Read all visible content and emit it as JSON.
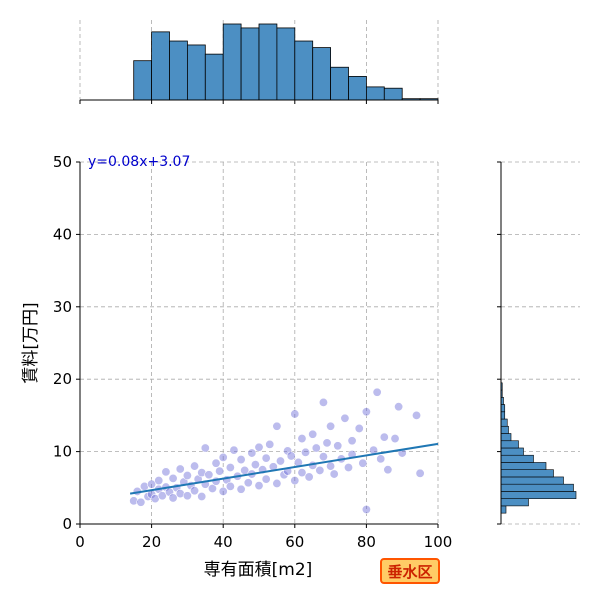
{
  "chart_data": {
    "type": "scatter",
    "xlabel": "専有面積[m2]",
    "ylabel": "賃料[万円]",
    "xlim": [
      0,
      100
    ],
    "ylim": [
      0,
      50
    ],
    "xticks": [
      0,
      20,
      40,
      60,
      80,
      100
    ],
    "yticks": [
      0,
      10,
      20,
      30,
      40,
      50
    ],
    "grid": true,
    "equation_text": "y=0.08x+3.07",
    "regression": {
      "slope": 0.08,
      "intercept": 3.07,
      "x_range": [
        14,
        100
      ]
    },
    "points": [
      [
        15,
        3.2
      ],
      [
        16,
        4.5
      ],
      [
        17,
        3.0
      ],
      [
        18,
        5.2
      ],
      [
        19,
        3.8
      ],
      [
        20,
        4.1
      ],
      [
        20,
        5.5
      ],
      [
        21,
        3.5
      ],
      [
        22,
        6.0
      ],
      [
        22,
        4.8
      ],
      [
        23,
        3.9
      ],
      [
        24,
        5.1
      ],
      [
        24,
        7.2
      ],
      [
        25,
        4.4
      ],
      [
        26,
        6.3
      ],
      [
        26,
        3.6
      ],
      [
        27,
        5.0
      ],
      [
        28,
        7.6
      ],
      [
        28,
        4.2
      ],
      [
        29,
        5.8
      ],
      [
        30,
        3.9
      ],
      [
        30,
        6.7
      ],
      [
        31,
        5.3
      ],
      [
        32,
        8.0
      ],
      [
        32,
        4.6
      ],
      [
        33,
        6.2
      ],
      [
        34,
        3.8
      ],
      [
        34,
        7.1
      ],
      [
        35,
        5.5
      ],
      [
        35,
        10.5
      ],
      [
        36,
        6.8
      ],
      [
        37,
        4.9
      ],
      [
        38,
        8.4
      ],
      [
        38,
        5.9
      ],
      [
        39,
        7.3
      ],
      [
        40,
        4.5
      ],
      [
        40,
        9.2
      ],
      [
        41,
        6.1
      ],
      [
        42,
        7.8
      ],
      [
        42,
        5.2
      ],
      [
        43,
        10.2
      ],
      [
        44,
        6.6
      ],
      [
        45,
        8.9
      ],
      [
        45,
        4.8
      ],
      [
        46,
        7.4
      ],
      [
        47,
        5.7
      ],
      [
        48,
        9.8
      ],
      [
        48,
        6.9
      ],
      [
        49,
        8.2
      ],
      [
        50,
        5.3
      ],
      [
        50,
        10.6
      ],
      [
        51,
        7.5
      ],
      [
        52,
        9.1
      ],
      [
        52,
        6.2
      ],
      [
        53,
        11.0
      ],
      [
        54,
        7.9
      ],
      [
        55,
        5.6
      ],
      [
        55,
        13.5
      ],
      [
        56,
        8.7
      ],
      [
        57,
        6.8
      ],
      [
        58,
        10.1
      ],
      [
        58,
        7.3
      ],
      [
        59,
        9.4
      ],
      [
        60,
        6.0
      ],
      [
        60,
        15.2
      ],
      [
        61,
        8.5
      ],
      [
        62,
        11.8
      ],
      [
        62,
        7.1
      ],
      [
        63,
        9.9
      ],
      [
        64,
        6.5
      ],
      [
        65,
        12.4
      ],
      [
        65,
        8.1
      ],
      [
        66,
        10.5
      ],
      [
        67,
        7.4
      ],
      [
        68,
        16.8
      ],
      [
        68,
        9.3
      ],
      [
        69,
        11.2
      ],
      [
        70,
        8.0
      ],
      [
        70,
        13.5
      ],
      [
        71,
        6.9
      ],
      [
        72,
        10.8
      ],
      [
        73,
        9.0
      ],
      [
        74,
        14.6
      ],
      [
        75,
        7.8
      ],
      [
        76,
        11.5
      ],
      [
        76,
        9.6
      ],
      [
        78,
        13.2
      ],
      [
        79,
        8.4
      ],
      [
        80,
        15.5
      ],
      [
        80,
        2.0
      ],
      [
        82,
        10.2
      ],
      [
        83,
        18.2
      ],
      [
        84,
        9.0
      ],
      [
        85,
        12.0
      ],
      [
        86,
        7.5
      ],
      [
        88,
        11.8
      ],
      [
        89,
        16.2
      ],
      [
        90,
        9.8
      ],
      [
        94,
        15.0
      ],
      [
        95,
        7.0
      ]
    ],
    "x_hist": {
      "bin_edges": [
        0,
        5,
        10,
        15,
        20,
        25,
        30,
        35,
        40,
        45,
        50,
        55,
        60,
        65,
        70,
        75,
        80,
        85,
        90,
        95,
        100
      ],
      "counts": [
        0,
        0,
        0,
        30,
        52,
        45,
        42,
        35,
        58,
        55,
        58,
        55,
        45,
        40,
        25,
        18,
        10,
        9,
        1,
        1
      ]
    },
    "y_hist": {
      "bin_edges": [
        1.5,
        2.5,
        3.5,
        4.5,
        5.5,
        6.5,
        7.5,
        8.5,
        9.5,
        10.5,
        11.5,
        12.5,
        13.5,
        14.5,
        15.5,
        16.5,
        17.5,
        18.5,
        19.5
      ],
      "counts": [
        4,
        22,
        60,
        58,
        50,
        42,
        36,
        26,
        18,
        14,
        8,
        6,
        5,
        3,
        3,
        2,
        1,
        1
      ]
    }
  },
  "badge": {
    "label": "垂水区"
  },
  "colors": {
    "point_fill": "#6a6ad8",
    "point_stroke": "#ffffff",
    "regression": "#1f77b4",
    "hist_fill": "#4c8fc3",
    "grid": "#aaaaaa",
    "equation": "#0000cc"
  }
}
